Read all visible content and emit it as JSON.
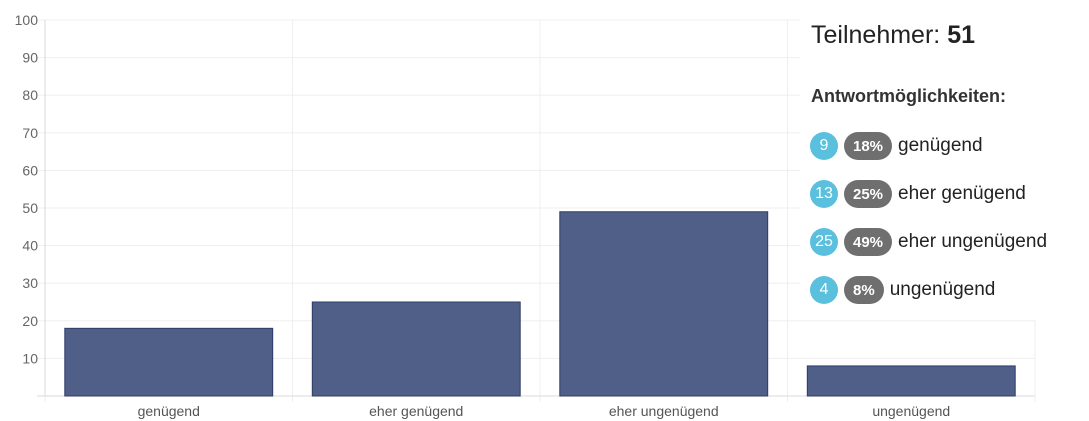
{
  "chart_data": {
    "type": "bar",
    "categories": [
      "genügend",
      "eher genügend",
      "eher ungenügend",
      "ungenügend"
    ],
    "values": [
      18,
      25,
      49,
      8
    ],
    "ylim": [
      0,
      100
    ],
    "yticks": [
      10,
      20,
      30,
      40,
      50,
      60,
      70,
      80,
      90,
      100
    ],
    "title": "",
    "xlabel": "",
    "ylabel": "",
    "grid": true
  },
  "panel": {
    "participants_label": "Teilnehmer:",
    "participants_count": "51",
    "options_heading": "Antwortmöglichkeiten:",
    "options": [
      {
        "count": "9",
        "percent": "18%",
        "label": "genügend"
      },
      {
        "count": "13",
        "percent": "25%",
        "label": "eher genügend"
      },
      {
        "count": "25",
        "percent": "49%",
        "label": "eher ungenügend"
      },
      {
        "count": "4",
        "percent": "8%",
        "label": "ungenügend"
      }
    ]
  },
  "colors": {
    "bar": "#4f5f88",
    "bar_border": "#2f3c66",
    "grid": "#efefef",
    "axis": "#d8d8d8",
    "tick_text": "#666666",
    "count_badge": "#5bc0de",
    "percent_badge": "#6f6f6f"
  }
}
